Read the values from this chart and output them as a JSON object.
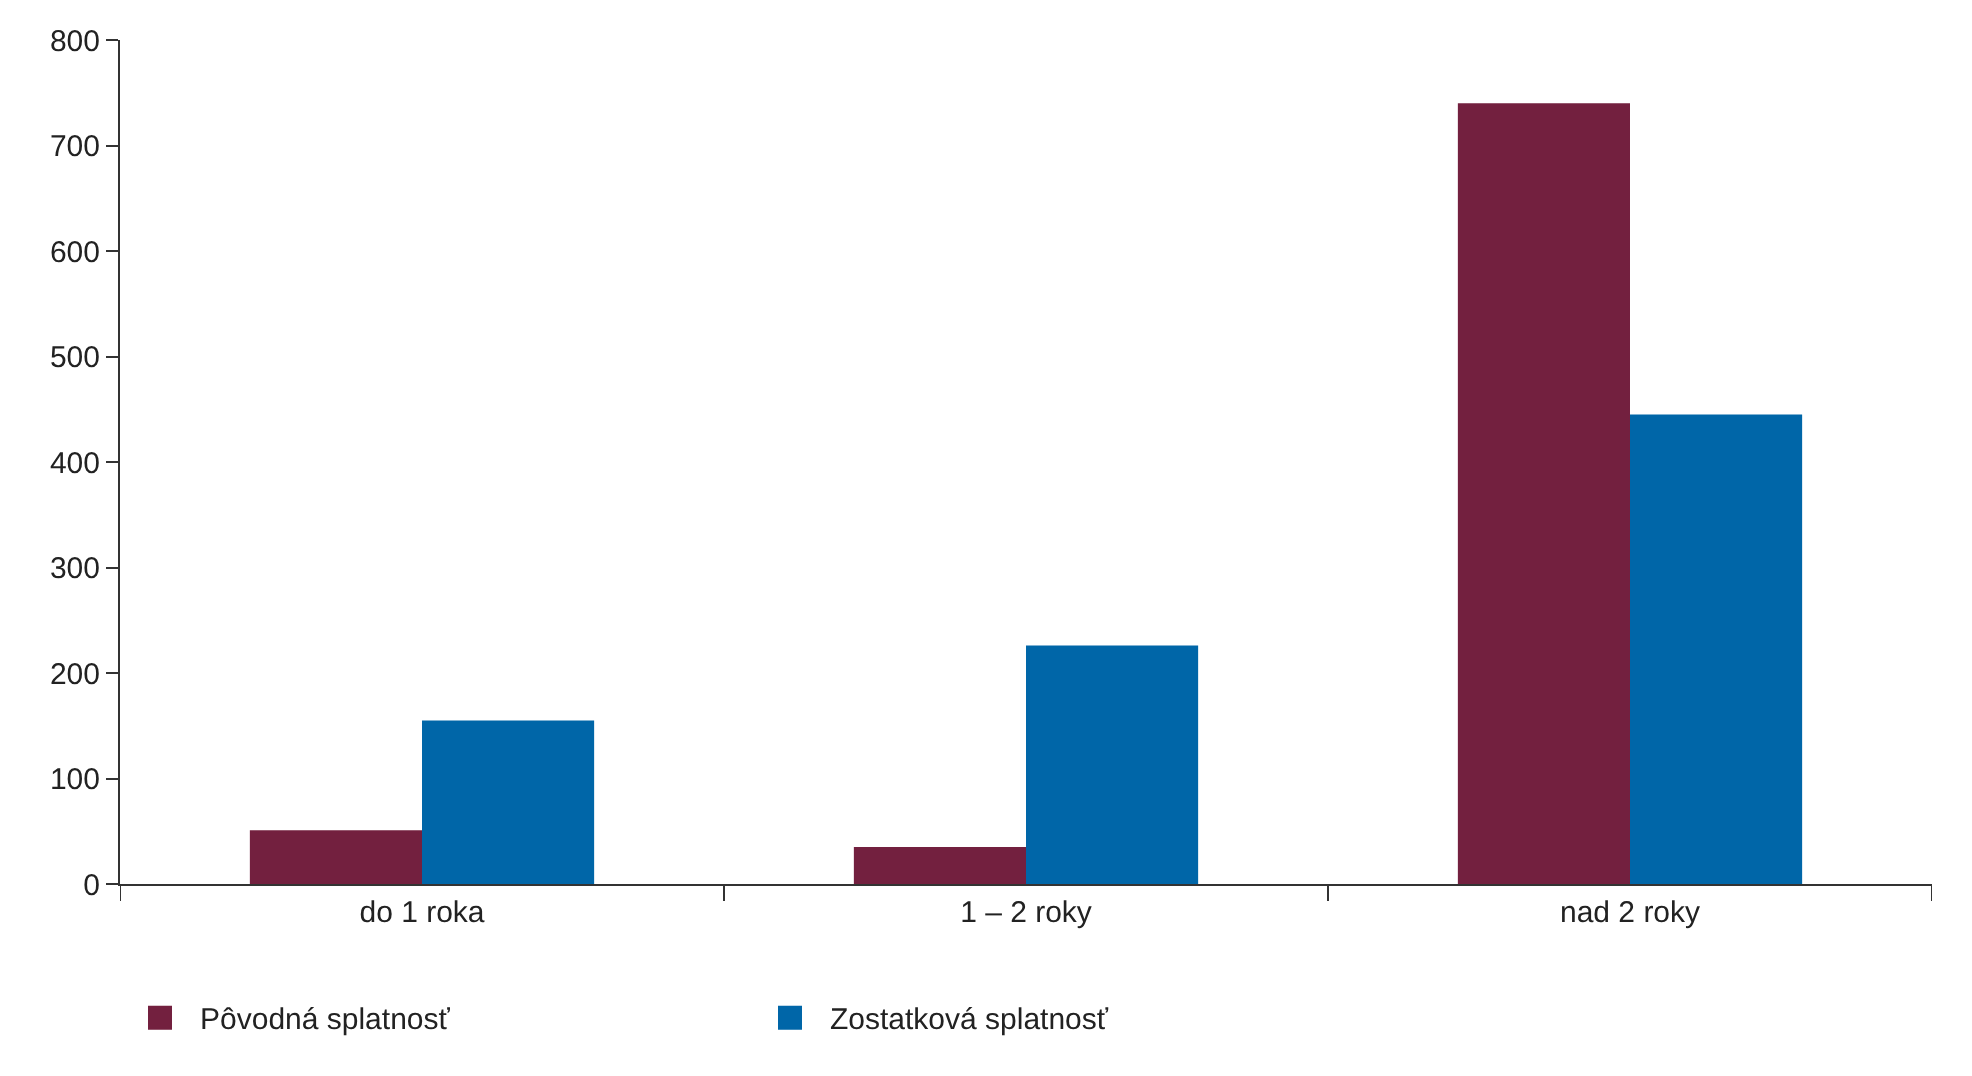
{
  "chart_data": {
    "type": "bar",
    "categories": [
      "do 1 roka",
      "1 – 2 roky",
      "nad 2 roky"
    ],
    "series": [
      {
        "name": "Pôvodná splatnosť",
        "color": "#73203f",
        "values": [
          51,
          35,
          740
        ]
      },
      {
        "name": "Zostatková splatnosť",
        "color": "#0066a8",
        "values": [
          155,
          226,
          445
        ]
      }
    ],
    "ylim": [
      0,
      800
    ],
    "yticks": [
      0,
      100,
      200,
      300,
      400,
      500,
      600,
      700,
      800
    ],
    "legend": "bottom left"
  }
}
